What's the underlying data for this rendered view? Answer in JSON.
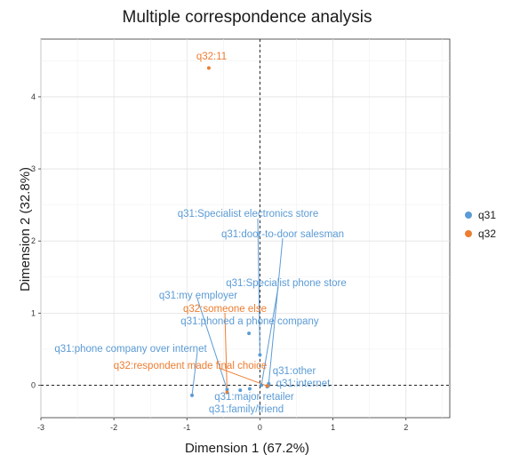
{
  "chart_data": {
    "type": "scatter",
    "title": "Multiple correspondence analysis",
    "xlabel": "Dimension 1 (67.2%)",
    "ylabel": "Dimension 2 (32.8%)",
    "xlim": [
      -3,
      2.6
    ],
    "ylim": [
      -0.45,
      4.8
    ],
    "xticks": [
      -3,
      -2,
      -1,
      0,
      1,
      2
    ],
    "yticks": [
      0,
      1,
      2,
      3,
      4
    ],
    "grid": true,
    "reference_lines": {
      "x": 0,
      "y": 0,
      "style": "dashed"
    },
    "legend_position": "right",
    "series": [
      {
        "name": "q31",
        "color": "#5b9bd5",
        "points": [
          {
            "label": "q31:Specialist electronics store",
            "x": 0.0,
            "y": 0.42
          },
          {
            "label": "q31:door-to-door salesman",
            "x": 0.12,
            "y": 0.02
          },
          {
            "label": "q31:Specialist phone store",
            "x": 0.02,
            "y": 0.0
          },
          {
            "label": "q31:my employer",
            "x": -0.45,
            "y": -0.06
          },
          {
            "label": "q31:phoned a phone company",
            "x": -0.15,
            "y": 0.72
          },
          {
            "label": "q31:phone company over internet",
            "x": -0.93,
            "y": -0.14
          },
          {
            "label": "q31:other",
            "x": 0.12,
            "y": 0.0
          },
          {
            "label": "q31:internet",
            "x": 0.1,
            "y": -0.02
          },
          {
            "label": "q31:major retailer",
            "x": -0.14,
            "y": -0.05
          },
          {
            "label": "q31:family/friend",
            "x": -0.27,
            "y": -0.07
          }
        ]
      },
      {
        "name": "q32",
        "color": "#ed7d31",
        "points": [
          {
            "label": "q32:11",
            "x": -0.7,
            "y": 4.4
          },
          {
            "label": "q32:someone else",
            "x": -0.45,
            "y": -0.1
          },
          {
            "label": "q32:respondent made final choice",
            "x": 0.1,
            "y": -0.01
          }
        ]
      }
    ]
  }
}
